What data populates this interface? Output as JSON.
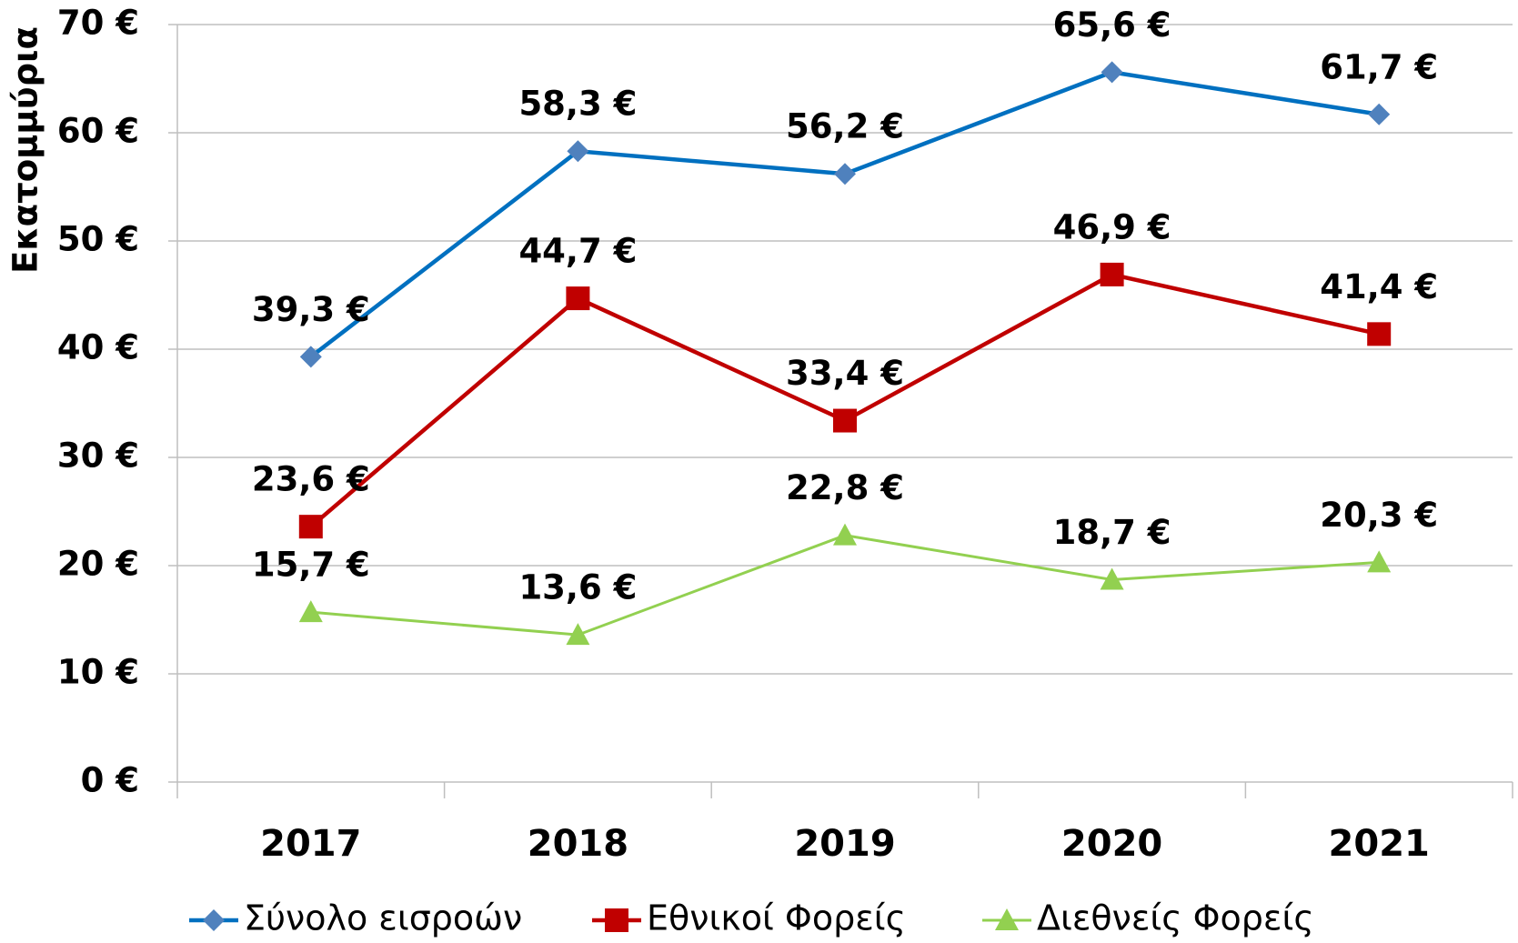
{
  "chart_data": {
    "type": "line",
    "y_label": "Εκατομμύρια",
    "categories": [
      "2017",
      "2018",
      "2019",
      "2020",
      "2021"
    ],
    "series": [
      {
        "name": "Σύνολο εισροών",
        "color": "#0070c0",
        "marker_color": "#4f81bd",
        "marker": "diamond",
        "values": [
          39.3,
          58.3,
          56.2,
          65.6,
          61.7
        ],
        "value_labels": [
          "39,3 €",
          "58,3 €",
          "56,2 €",
          "65,6 €",
          "61,7 €"
        ]
      },
      {
        "name": "Εθνικοί Φορείς",
        "color": "#c00000",
        "marker_color": "#c00000",
        "marker": "square",
        "values": [
          23.6,
          44.7,
          33.4,
          46.9,
          41.4
        ],
        "value_labels": [
          "23,6 €",
          "44,7 €",
          "33,4 €",
          "46,9 €",
          "41,4 €"
        ]
      },
      {
        "name": "Διεθνείς Φορείς",
        "color": "#92d050",
        "marker_color": "#92d050",
        "marker": "triangle",
        "values": [
          15.7,
          13.6,
          22.8,
          18.7,
          20.3
        ],
        "value_labels": [
          "15,7 €",
          "13,6 €",
          "22,8 €",
          "18,7 €",
          "20,3 €"
        ]
      }
    ],
    "ylim": [
      0,
      70
    ],
    "yticks": [
      {
        "value": 0,
        "label": "0 €"
      },
      {
        "value": 10,
        "label": "10 €"
      },
      {
        "value": 20,
        "label": "20 €"
      },
      {
        "value": 30,
        "label": "30 €"
      },
      {
        "value": 40,
        "label": "40 €"
      },
      {
        "value": 50,
        "label": "50 €"
      },
      {
        "value": 60,
        "label": "60 €"
      },
      {
        "value": 70,
        "label": "70 €"
      }
    ],
    "grid": true,
    "legend": "bottom"
  }
}
